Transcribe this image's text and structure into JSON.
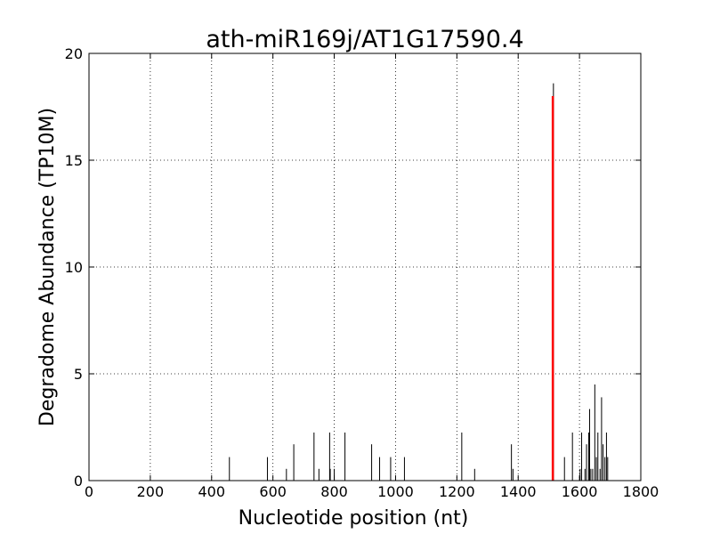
{
  "chart_data": {
    "type": "bar",
    "title": "ath-miR169j/AT1G17590.4",
    "xlabel": "Nucleotide position (nt)",
    "ylabel": "Degradome Abundance (TP10M)",
    "xlim": [
      0,
      1800
    ],
    "ylim": [
      0,
      20
    ],
    "xticks": [
      0,
      200,
      400,
      600,
      800,
      1000,
      1200,
      1400,
      1600,
      1800
    ],
    "yticks": [
      0,
      5,
      10,
      15,
      20
    ],
    "grid": true,
    "series": [
      {
        "color": "#000000",
        "points": [
          {
            "x": 458,
            "y": 1.1
          },
          {
            "x": 582,
            "y": 1.1
          },
          {
            "x": 644,
            "y": 0.55
          },
          {
            "x": 668,
            "y": 1.7
          },
          {
            "x": 734,
            "y": 2.25
          },
          {
            "x": 750,
            "y": 0.55
          },
          {
            "x": 785,
            "y": 2.25
          },
          {
            "x": 787,
            "y": 0.55
          },
          {
            "x": 800,
            "y": 0.55
          },
          {
            "x": 835,
            "y": 2.25
          },
          {
            "x": 922,
            "y": 1.7
          },
          {
            "x": 948,
            "y": 1.1
          },
          {
            "x": 984,
            "y": 1.1
          },
          {
            "x": 1029,
            "y": 1.1
          },
          {
            "x": 1216,
            "y": 2.25
          },
          {
            "x": 1258,
            "y": 0.55
          },
          {
            "x": 1378,
            "y": 1.7
          },
          {
            "x": 1383,
            "y": 0.55
          },
          {
            "x": 1515,
            "y": 18.6
          },
          {
            "x": 1551,
            "y": 1.1
          },
          {
            "x": 1577,
            "y": 2.25
          },
          {
            "x": 1602,
            "y": 0.55
          },
          {
            "x": 1607,
            "y": 2.25
          },
          {
            "x": 1618,
            "y": 0.55
          },
          {
            "x": 1623,
            "y": 1.7
          },
          {
            "x": 1630,
            "y": 2.25
          },
          {
            "x": 1633,
            "y": 3.35
          },
          {
            "x": 1637,
            "y": 0.55
          },
          {
            "x": 1643,
            "y": 0.55
          },
          {
            "x": 1650,
            "y": 4.5
          },
          {
            "x": 1655,
            "y": 1.1
          },
          {
            "x": 1660,
            "y": 2.25
          },
          {
            "x": 1667,
            "y": 0.55
          },
          {
            "x": 1672,
            "y": 3.9
          },
          {
            "x": 1677,
            "y": 1.7
          },
          {
            "x": 1683,
            "y": 1.1
          },
          {
            "x": 1688,
            "y": 2.25
          },
          {
            "x": 1692,
            "y": 1.1
          }
        ]
      },
      {
        "color": "#ff0000",
        "points": [
          {
            "x": 1513,
            "y": 18.0
          }
        ]
      }
    ]
  }
}
